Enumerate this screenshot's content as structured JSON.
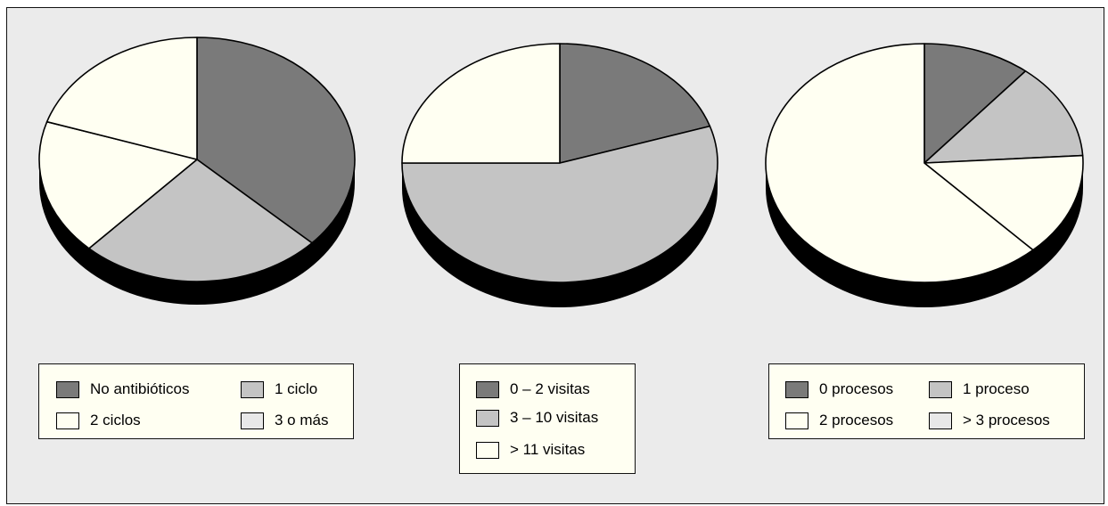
{
  "chart_data": [
    {
      "type": "pie",
      "values": [
        37,
        25,
        18,
        20
      ],
      "legend": [
        {
          "label": "No antibióticos",
          "color": "#7a7a7a"
        },
        {
          "label": "1 ciclo",
          "color": "#c4c4c4"
        },
        {
          "label": "2 ciclos",
          "color": "#fffff2"
        },
        {
          "label": "3 o más",
          "color": "#e8e8e8"
        }
      ],
      "slice_colors": [
        "#7a7a7a",
        "#c4c4c4",
        "#fffff2",
        "#fffff2"
      ]
    },
    {
      "type": "pie",
      "values": [
        20,
        55,
        25
      ],
      "legend": [
        {
          "label": "0 – 2 visitas",
          "color": "#7a7a7a"
        },
        {
          "label": "3 – 10 visitas",
          "color": "#c4c4c4"
        },
        {
          "label": "> 11 visitas",
          "color": "#fffff2"
        }
      ],
      "slice_colors": [
        "#7a7a7a",
        "#c4c4c4",
        "#fffff2"
      ]
    },
    {
      "type": "pie",
      "values": [
        11,
        13,
        14,
        62
      ],
      "legend": [
        {
          "label": "0 procesos",
          "color": "#7a7a7a"
        },
        {
          "label": "1 proceso",
          "color": "#c4c4c4"
        },
        {
          "label": "2 procesos",
          "color": "#fffff2"
        },
        {
          "label": "> 3 procesos",
          "color": "#e8e8e8"
        }
      ],
      "slice_colors": [
        "#7a7a7a",
        "#c4c4c4",
        "#fffff2",
        "#fffff2"
      ]
    }
  ]
}
